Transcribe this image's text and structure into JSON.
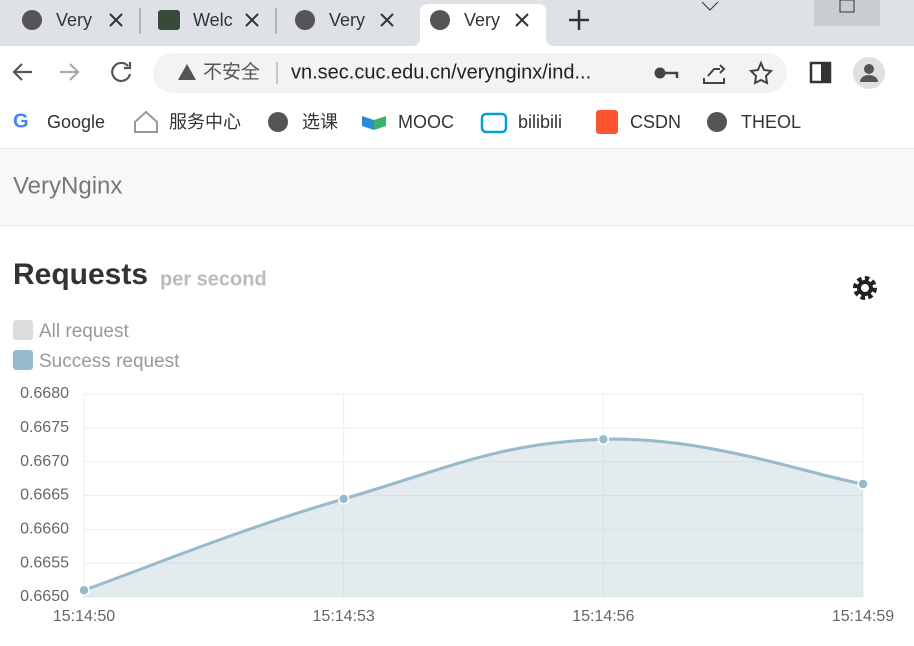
{
  "browser": {
    "tabs": [
      "Very",
      "Welc",
      "Very",
      "Very"
    ],
    "address": {
      "security": "不安全",
      "url": "vn.sec.cuc.edu.cn/verynginx/ind..."
    },
    "bookmarks": [
      "Google",
      "服务中心",
      "选课",
      "MOOC",
      "bilibili",
      "CSDN",
      "THEOL"
    ]
  },
  "navbar": {
    "brand": "VeryNginx"
  },
  "chart_data": {
    "type": "line",
    "title": "Requests",
    "subtitle": "per second",
    "categories": [
      "15:14:50",
      "15:14:53",
      "15:14:56",
      "15:14:59"
    ],
    "series": [
      {
        "name": "All request",
        "color": "#dcdcdc",
        "values": [
          0.6651,
          0.66645,
          0.66733,
          0.66667
        ]
      },
      {
        "name": "Success request",
        "color": "#97bbcd",
        "values": [
          0.6651,
          0.66645,
          0.66733,
          0.66667
        ]
      }
    ],
    "ylim": [
      0.665,
      0.668
    ],
    "yticks": [
      {
        "value": 0.665,
        "label": "0.6650"
      },
      {
        "value": 0.6655,
        "label": "0.6655"
      },
      {
        "value": 0.666,
        "label": "0.6660"
      },
      {
        "value": 0.6665,
        "label": "0.6665"
      },
      {
        "value": 0.667,
        "label": "0.6670"
      },
      {
        "value": 0.6675,
        "label": "0.6675"
      },
      {
        "value": 0.668,
        "label": "0.6680"
      }
    ],
    "grid": true,
    "fill": true
  }
}
